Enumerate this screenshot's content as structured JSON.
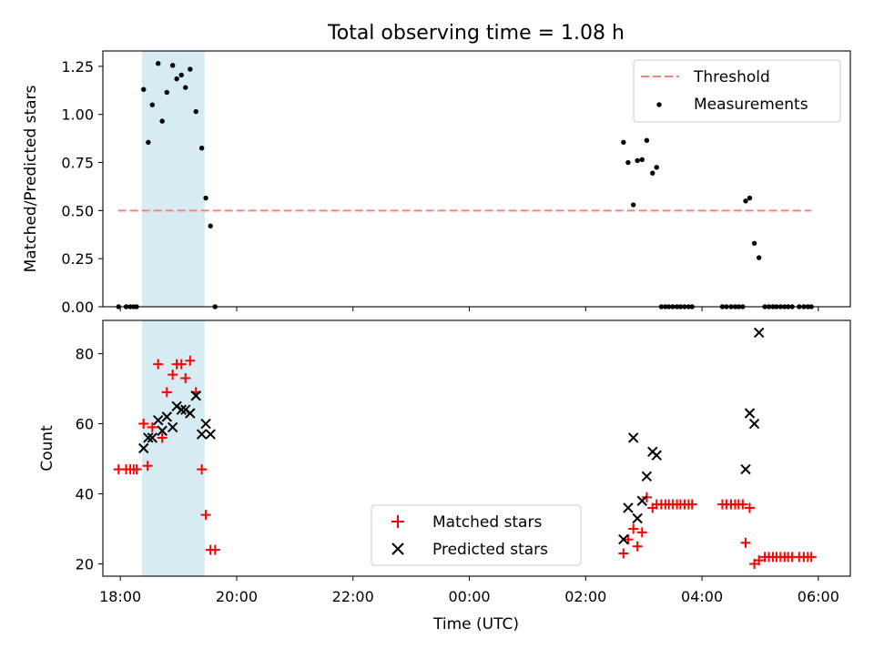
{
  "figure": {
    "title": "Total observing time = 1.08 h"
  },
  "chart_data": [
    {
      "type": "scatter",
      "xlabel": "",
      "ylabel": "Matched/Predicted stars",
      "xlim": [
        17.7,
        30.55
      ],
      "ylim": [
        0,
        1.33
      ],
      "x_ticks": [
        "18:00",
        "20:00",
        "22:00",
        "00:00",
        "02:00",
        "04:00",
        "06:00"
      ],
      "y_ticks": [
        "0.00",
        "0.25",
        "0.50",
        "0.75",
        "1.00",
        "1.25"
      ],
      "shaded_interval": [
        18.37,
        19.45
      ],
      "legend": {
        "placement": "upper right",
        "entries": [
          "Threshold",
          "Measurements"
        ]
      },
      "threshold": {
        "name": "Threshold",
        "value": 0.5,
        "x_range": [
          17.96,
          29.88
        ],
        "color": "#ff7f7f",
        "style": "dashed"
      },
      "series": [
        {
          "name": "Measurements",
          "color": "#000000",
          "marker": "dot",
          "points": [
            [
              17.97,
              0
            ],
            [
              18.1,
              0
            ],
            [
              18.17,
              0
            ],
            [
              18.23,
              0
            ],
            [
              18.28,
              0
            ],
            [
              18.4,
              1.13
            ],
            [
              18.48,
              0.855
            ],
            [
              18.55,
              1.05
            ],
            [
              18.65,
              1.265
            ],
            [
              18.72,
              0.965
            ],
            [
              18.8,
              1.115
            ],
            [
              18.9,
              1.255
            ],
            [
              18.97,
              1.185
            ],
            [
              19.05,
              1.205
            ],
            [
              19.12,
              1.14
            ],
            [
              19.2,
              1.235
            ],
            [
              19.3,
              1.015
            ],
            [
              19.4,
              0.825
            ],
            [
              19.47,
              0.565
            ],
            [
              19.55,
              0.42
            ],
            [
              19.63,
              0
            ],
            [
              26.65,
              0.855
            ],
            [
              26.73,
              0.75
            ],
            [
              26.82,
              0.53
            ],
            [
              26.89,
              0.76
            ],
            [
              26.97,
              0.765
            ],
            [
              27.05,
              0.865
            ],
            [
              27.15,
              0.695
            ],
            [
              27.22,
              0.725
            ],
            [
              27.3,
              0
            ],
            [
              27.37,
              0
            ],
            [
              27.43,
              0
            ],
            [
              27.5,
              0
            ],
            [
              27.57,
              0
            ],
            [
              27.63,
              0
            ],
            [
              27.7,
              0
            ],
            [
              27.77,
              0
            ],
            [
              27.83,
              0
            ],
            [
              28.35,
              0
            ],
            [
              28.42,
              0
            ],
            [
              28.5,
              0
            ],
            [
              28.57,
              0
            ],
            [
              28.63,
              0
            ],
            [
              28.7,
              0
            ],
            [
              28.75,
              0.55
            ],
            [
              28.82,
              0.565
            ],
            [
              28.9,
              0.33
            ],
            [
              28.98,
              0.255
            ],
            [
              29.08,
              0
            ],
            [
              29.15,
              0
            ],
            [
              29.22,
              0
            ],
            [
              29.28,
              0
            ],
            [
              29.35,
              0
            ],
            [
              29.42,
              0
            ],
            [
              29.48,
              0
            ],
            [
              29.55,
              0
            ],
            [
              29.67,
              0
            ],
            [
              29.75,
              0
            ],
            [
              29.82,
              0
            ],
            [
              29.88,
              0
            ]
          ]
        }
      ]
    },
    {
      "type": "scatter",
      "xlabel": "Time (UTC)",
      "ylabel": "Count",
      "xlim": [
        17.7,
        30.55
      ],
      "ylim": [
        16.5,
        89.5
      ],
      "x_ticks": [
        "18:00",
        "20:00",
        "22:00",
        "00:00",
        "02:00",
        "04:00",
        "06:00"
      ],
      "y_ticks": [
        "20",
        "40",
        "60",
        "80"
      ],
      "shaded_interval": [
        18.37,
        19.45
      ],
      "legend": {
        "placement": "lower center",
        "entries": [
          "Matched stars",
          "Predicted stars"
        ]
      },
      "series": [
        {
          "name": "Matched stars",
          "color": "#ff0000",
          "marker": "plus",
          "points": [
            [
              17.97,
              47
            ],
            [
              18.1,
              47
            ],
            [
              18.17,
              47
            ],
            [
              18.23,
              47
            ],
            [
              18.28,
              47
            ],
            [
              18.4,
              60
            ],
            [
              18.47,
              48
            ],
            [
              18.55,
              59
            ],
            [
              18.65,
              77
            ],
            [
              18.72,
              56
            ],
            [
              18.8,
              69
            ],
            [
              18.9,
              74
            ],
            [
              18.97,
              77
            ],
            [
              19.05,
              77
            ],
            [
              19.12,
              73
            ],
            [
              19.2,
              78
            ],
            [
              19.3,
              69
            ],
            [
              19.4,
              47
            ],
            [
              19.47,
              34
            ],
            [
              19.55,
              24
            ],
            [
              19.63,
              24
            ],
            [
              26.65,
              23
            ],
            [
              26.73,
              27
            ],
            [
              26.82,
              30
            ],
            [
              26.89,
              25
            ],
            [
              26.97,
              29
            ],
            [
              27.05,
              39
            ],
            [
              27.15,
              36
            ],
            [
              27.22,
              37
            ],
            [
              27.3,
              37
            ],
            [
              27.37,
              37
            ],
            [
              27.43,
              37
            ],
            [
              27.5,
              37
            ],
            [
              27.57,
              37
            ],
            [
              27.63,
              37
            ],
            [
              27.7,
              37
            ],
            [
              27.77,
              37
            ],
            [
              27.83,
              37
            ],
            [
              28.35,
              37
            ],
            [
              28.42,
              37
            ],
            [
              28.5,
              37
            ],
            [
              28.57,
              37
            ],
            [
              28.63,
              37
            ],
            [
              28.7,
              37
            ],
            [
              28.75,
              26
            ],
            [
              28.82,
              36
            ],
            [
              28.9,
              20
            ],
            [
              28.98,
              21
            ],
            [
              29.08,
              22
            ],
            [
              29.15,
              22
            ],
            [
              29.22,
              22
            ],
            [
              29.28,
              22
            ],
            [
              29.35,
              22
            ],
            [
              29.42,
              22
            ],
            [
              29.48,
              22
            ],
            [
              29.55,
              22
            ],
            [
              29.67,
              22
            ],
            [
              29.75,
              22
            ],
            [
              29.82,
              22
            ],
            [
              29.88,
              22
            ]
          ]
        },
        {
          "name": "Predicted stars",
          "color": "#000000",
          "marker": "x",
          "points": [
            [
              18.4,
              53
            ],
            [
              18.48,
              56
            ],
            [
              18.55,
              56
            ],
            [
              18.65,
              61
            ],
            [
              18.72,
              58
            ],
            [
              18.8,
              62
            ],
            [
              18.9,
              59
            ],
            [
              18.97,
              65
            ],
            [
              19.05,
              64
            ],
            [
              19.12,
              64
            ],
            [
              19.2,
              63
            ],
            [
              19.3,
              68
            ],
            [
              19.4,
              57
            ],
            [
              19.47,
              60
            ],
            [
              19.55,
              57
            ],
            [
              26.65,
              27
            ],
            [
              26.73,
              36
            ],
            [
              26.82,
              56
            ],
            [
              26.89,
              33
            ],
            [
              26.97,
              38
            ],
            [
              27.05,
              45
            ],
            [
              27.15,
              52
            ],
            [
              27.22,
              51
            ],
            [
              28.75,
              47
            ],
            [
              28.82,
              63
            ],
            [
              28.9,
              60
            ],
            [
              28.98,
              86
            ]
          ]
        }
      ]
    }
  ]
}
